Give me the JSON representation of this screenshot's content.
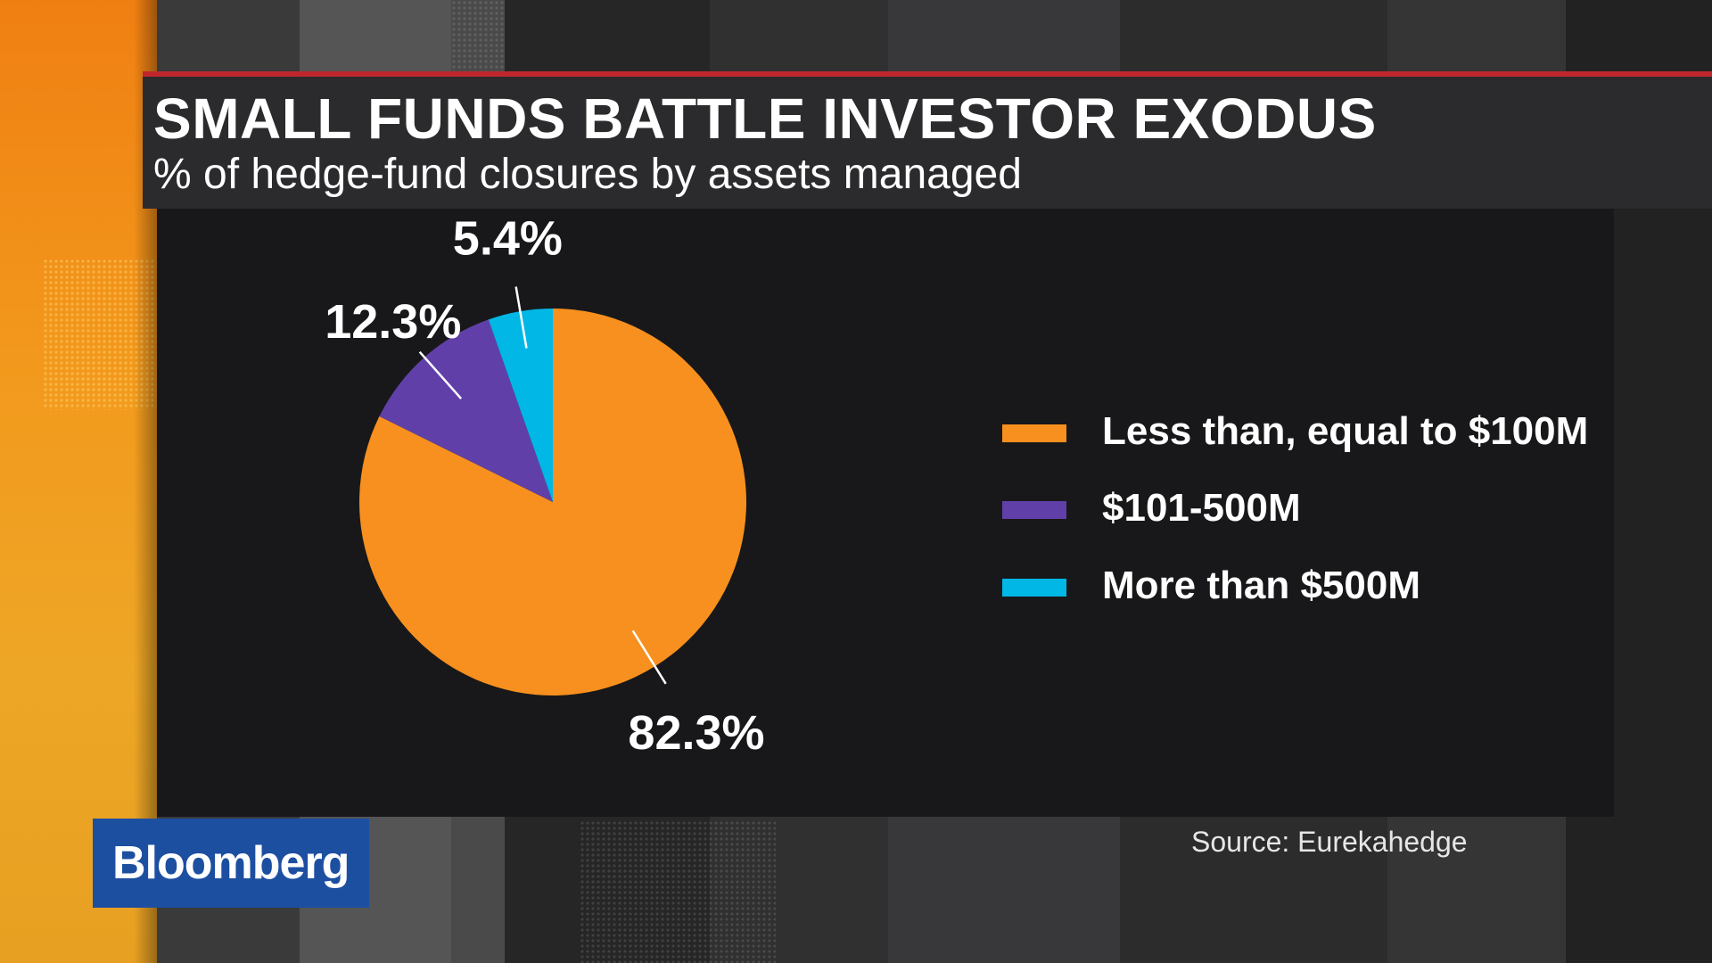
{
  "header": {
    "title": "SMALL FUNDS BATTLE INVESTOR EXODUS",
    "subtitle": "% of hedge-fund closures by assets managed"
  },
  "chart_data": {
    "type": "pie",
    "title": "SMALL FUNDS BATTLE INVESTOR EXODUS",
    "subtitle": "% of hedge-fund closures by assets managed",
    "categories": [
      "Less than, equal to $100M",
      "$101-500M",
      "More than $500M"
    ],
    "values": [
      82.3,
      12.3,
      5.4
    ],
    "data_labels": [
      "82.3%",
      "12.3%",
      "5.4%"
    ],
    "colors": [
      "#f7901e",
      "#6040a8",
      "#00b7e6"
    ],
    "legend_position": "right"
  },
  "legend": {
    "items": [
      {
        "label": "Less than, equal to $100M",
        "color": "#f7901e"
      },
      {
        "label": "$101-500M",
        "color": "#6040a8"
      },
      {
        "label": "More than $500M",
        "color": "#00b7e6"
      }
    ]
  },
  "footer": {
    "logo": "Bloomberg",
    "source": "Source: Eurekahedge"
  },
  "colors": {
    "accent_red": "#c0272d",
    "logo_blue": "#1d4fa1",
    "orange_band": "#f29a1d"
  }
}
